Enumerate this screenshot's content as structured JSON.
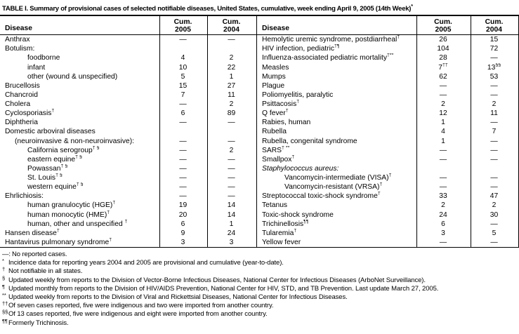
{
  "title": {
    "text": "TABLE I. Summary of provisional cases of selected notifiable diseases, United States, cumulative, week ending April 9, 2005 (14th Week)",
    "sup": "*"
  },
  "table": {
    "headers": {
      "disease": "Disease",
      "cum": "Cum.",
      "y2005": "2005",
      "y2004": "2004"
    },
    "left_rows": [
      {
        "label": "Anthrax",
        "cum2005": "—",
        "cum2004": "—"
      },
      {
        "label": "Botulism:",
        "cum2005": "",
        "cum2004": ""
      },
      {
        "label": "foodborne",
        "indent": 2,
        "cum2005": "4",
        "cum2004": "2"
      },
      {
        "label": "infant",
        "indent": 2,
        "cum2005": "10",
        "cum2004": "22"
      },
      {
        "label": "other (wound & unspecified)",
        "indent": 2,
        "cum2005": "5",
        "cum2004": "1"
      },
      {
        "label": "Brucellosis",
        "cum2005": "15",
        "cum2004": "27"
      },
      {
        "label": "Chancroid",
        "cum2005": "7",
        "cum2004": "11"
      },
      {
        "label": "Cholera",
        "cum2005": "—",
        "cum2004": "2"
      },
      {
        "label": "Cyclosporiasis",
        "sup": "†",
        "cum2005": "6",
        "cum2004": "89"
      },
      {
        "label": "Diphtheria",
        "cum2005": "—",
        "cum2004": "—"
      },
      {
        "label": "Domestic arboviral diseases",
        "cum2005": "",
        "cum2004": ""
      },
      {
        "label": "(neuroinvasive & non-neuroinvasive):",
        "indent": 1,
        "cum2005": "—",
        "cum2004": "—"
      },
      {
        "label": "California serogroup",
        "sup": "† §",
        "indent": 2,
        "cum2005": "—",
        "cum2004": "2"
      },
      {
        "label": "eastern equine",
        "sup": "† §",
        "indent": 2,
        "cum2005": "—",
        "cum2004": "—"
      },
      {
        "label": "Powassan",
        "sup": "† §",
        "indent": 2,
        "cum2005": "—",
        "cum2004": "—"
      },
      {
        "label": "St. Louis",
        "sup": "† §",
        "indent": 2,
        "cum2005": "—",
        "cum2004": "—"
      },
      {
        "label": "western equine",
        "sup": "† §",
        "indent": 2,
        "cum2005": "—",
        "cum2004": "—"
      },
      {
        "label": "Ehrlichiosis:",
        "cum2005": "—",
        "cum2004": "—"
      },
      {
        "label": "human granulocytic (HGE)",
        "sup": "†",
        "indent": 2,
        "cum2005": "19",
        "cum2004": "14"
      },
      {
        "label": "human monocytic (HME)",
        "sup": "†",
        "indent": 2,
        "cum2005": "20",
        "cum2004": "14"
      },
      {
        "label": "human, other and unspecified ",
        "sup": "†",
        "indent": 2,
        "cum2005": "6",
        "cum2004": "1"
      },
      {
        "label": "Hansen disease",
        "sup": "†",
        "cum2005": "9",
        "cum2004": "24"
      },
      {
        "label": "Hantavirus pulmonary syndrome",
        "sup": "†",
        "cum2005": "3",
        "cum2004": "3"
      }
    ],
    "right_rows": [
      {
        "label": "Hemolytic uremic syndrome, postdiarrheal",
        "sup": "†",
        "cum2005": "26",
        "cum2004": "15"
      },
      {
        "label": "HIV infection, pediatric",
        "sup": "†¶",
        "cum2005": "104",
        "cum2004": "72"
      },
      {
        "label": "Influenza-associated pediatric mortality",
        "sup": "†**",
        "cum2005": "28",
        "cum2004": "—"
      },
      {
        "label": "Measles",
        "cum2005": "7",
        "cum2005_sup": "††",
        "cum2004": "13",
        "cum2004_sup": "§§"
      },
      {
        "label": "Mumps",
        "cum2005": "62",
        "cum2004": "53"
      },
      {
        "label": "Plague",
        "cum2005": "—",
        "cum2004": "—"
      },
      {
        "label": "Poliomyelitis, paralytic",
        "cum2005": "—",
        "cum2004": "—"
      },
      {
        "label": "Psittacosis",
        "sup": "†",
        "cum2005": "2",
        "cum2004": "2"
      },
      {
        "label": "Q fever",
        "sup": "†",
        "cum2005": "12",
        "cum2004": "11"
      },
      {
        "label": "Rabies, human",
        "cum2005": "1",
        "cum2004": "—"
      },
      {
        "label": "Rubella",
        "cum2005": "4",
        "cum2004": "7"
      },
      {
        "label": "Rubella, congenital syndrome",
        "cum2005": "1",
        "cum2004": "—"
      },
      {
        "label": "SARS",
        "sup": "† **",
        "cum2005": "—",
        "cum2004": "—"
      },
      {
        "label": "Smallpox",
        "sup": "†",
        "cum2005": "—",
        "cum2004": "—"
      },
      {
        "label": "Staphylococcus aureus:",
        "italic": true,
        "cum2005": "",
        "cum2004": ""
      },
      {
        "label": "Vancomycin-intermediate (VISA)",
        "sup": "†",
        "indent": 2,
        "cum2005": "—",
        "cum2004": "—"
      },
      {
        "label": "Vancomycin-resistant (VRSA)",
        "sup": "†",
        "indent": 2,
        "cum2005": "—",
        "cum2004": "—"
      },
      {
        "label": "Streptococcal toxic-shock syndrome",
        "sup": "†",
        "cum2005": "33",
        "cum2004": "47"
      },
      {
        "label": "Tetanus",
        "cum2005": "2",
        "cum2004": "2"
      },
      {
        "label": "Toxic-shock syndrome",
        "cum2005": "24",
        "cum2004": "30"
      },
      {
        "label": "Trichinellosis",
        "sup": "¶¶",
        "cum2005": "6",
        "cum2004": "—"
      },
      {
        "label": "Tularemia",
        "sup": "†",
        "cum2005": "3",
        "cum2004": "5"
      },
      {
        "label": "Yellow fever",
        "cum2005": "—",
        "cum2004": "—"
      }
    ]
  },
  "footnotes": [
    {
      "symbol": "—:",
      "raised": false,
      "text": "No reported cases."
    },
    {
      "symbol": "*",
      "raised": true,
      "text": "Incidence data for reporting years 2004 and 2005 are provisional and cumulative (year-to-date)."
    },
    {
      "symbol": "†",
      "raised": true,
      "text": "Not notifiable in all states."
    },
    {
      "symbol": "§",
      "raised": true,
      "text": "Updated weekly from reports to the Division of Vector-Borne Infectious Diseases, National Center for Infectious Diseases (ArboNet Surveillance)."
    },
    {
      "symbol": "¶",
      "raised": true,
      "text": "Updated monthly from reports to the Division of HIV/AIDS Prevention, National Center for HIV, STD, and TB Prevention. Last update March 27, 2005."
    },
    {
      "symbol": "**",
      "raised": true,
      "text": "Updated weekly from reports to the Division of Viral and Rickettsial Diseases, National Center for Infectious Diseases."
    },
    {
      "symbol": "††",
      "raised": true,
      "text": "Of seven cases reported, five were indigenous and two were imported from another country."
    },
    {
      "symbol": "§§",
      "raised": true,
      "text": "Of 13 cases reported, five were indigenous and eight were imported from another country."
    },
    {
      "symbol": "¶¶",
      "raised": true,
      "text": "Formerly Trichinosis."
    }
  ]
}
